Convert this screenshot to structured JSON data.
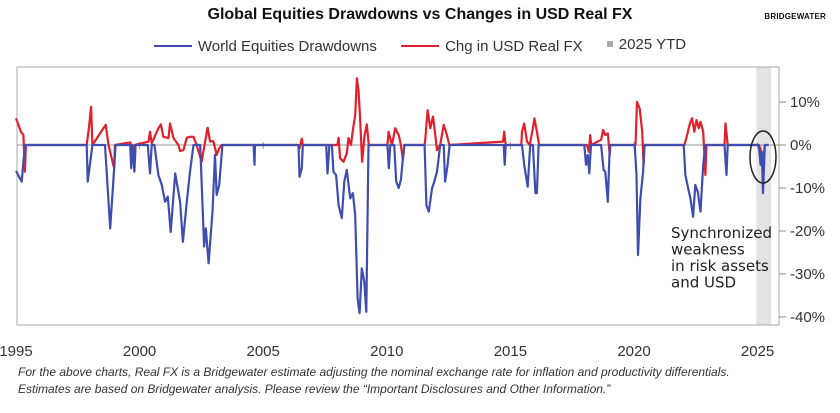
{
  "header": {
    "title": "Global Equities Drawdowns vs Changes in USD Real FX",
    "logo": "BRIDGEWATER"
  },
  "colors": {
    "drawdowns": "#3f4db0",
    "fx": "#e2202b",
    "ytd_band": "#e3e3e3"
  },
  "footnote": {
    "line1": "For the above charts, Real FX is a Bridgewater estimate adjusting the nominal exchange rate for inflation and productivity differentials.",
    "line2": "Estimates are based on Bridgewater analysis. Please review the “Important Disclosures and Other Information.”"
  },
  "chart_data": {
    "type": "line",
    "title": "Global Equities Drawdowns vs Changes in USD Real FX",
    "legend": [
      "World Equities Drawdowns",
      "Chg in USD Real FX",
      "2025 YTD"
    ],
    "legend_placement": "top",
    "xlim": [
      1995,
      2025.9
    ],
    "ylim": [
      -41.5,
      18
    ],
    "x_ticks": [
      "1995",
      "2000",
      "2005",
      "2010",
      "2015",
      "2020",
      "2025"
    ],
    "y_ticks": [
      "10%",
      "0%",
      "-10%",
      "-20%",
      "-30%",
      "-40%"
    ],
    "y_axis_side": "right",
    "grid": false,
    "ytd_band": [
      2024.95,
      2025.55
    ],
    "annotation": [
      "Synchronized",
      "weakness",
      "in risk assets",
      "and USD"
    ],
    "series": [
      {
        "name": "World Equities Drawdowns",
        "points": [
          [
            1995.0,
            -6
          ],
          [
            1995.09,
            -7
          ],
          [
            1995.23,
            -8.5
          ],
          [
            1995.36,
            0
          ],
          [
            1997.86,
            0
          ],
          [
            1997.9,
            -8.5
          ],
          [
            1997.99,
            -4.6
          ],
          [
            1998.09,
            0
          ],
          [
            1998.6,
            0
          ],
          [
            1998.81,
            -19.4
          ],
          [
            1998.98,
            -4.6
          ],
          [
            1999.03,
            0
          ],
          [
            1999.62,
            0
          ],
          [
            1999.66,
            -5.4
          ],
          [
            1999.71,
            0
          ],
          [
            1999.79,
            -6.2
          ],
          [
            1999.84,
            0
          ],
          [
            2000.33,
            0
          ],
          [
            2000.42,
            -6.6
          ],
          [
            2000.49,
            0
          ],
          [
            2000.6,
            0
          ],
          [
            2000.76,
            -7
          ],
          [
            2000.9,
            -9.3
          ],
          [
            2001.03,
            -13.2
          ],
          [
            2001.14,
            -12
          ],
          [
            2001.26,
            -20.2
          ],
          [
            2001.44,
            -6.6
          ],
          [
            2001.57,
            -10.9
          ],
          [
            2001.64,
            -13.2
          ],
          [
            2001.75,
            -22.5
          ],
          [
            2001.91,
            -13.2
          ],
          [
            2002.04,
            -6.2
          ],
          [
            2002.18,
            0
          ],
          [
            2002.45,
            0
          ],
          [
            2002.61,
            -23.6
          ],
          [
            2002.68,
            -19.4
          ],
          [
            2002.79,
            -27.5
          ],
          [
            2002.95,
            -15.5
          ],
          [
            2003.05,
            -2.3
          ],
          [
            2003.12,
            -11.6
          ],
          [
            2003.22,
            -9.3
          ],
          [
            2003.35,
            0
          ],
          [
            2004.61,
            0
          ],
          [
            2004.65,
            -4.6
          ],
          [
            2004.67,
            0
          ],
          [
            2006.43,
            0
          ],
          [
            2006.47,
            -7.4
          ],
          [
            2006.56,
            -5.4
          ],
          [
            2006.6,
            0
          ],
          [
            2007.55,
            0
          ],
          [
            2007.6,
            -6.6
          ],
          [
            2007.68,
            0
          ],
          [
            2007.78,
            0
          ],
          [
            2007.84,
            -6.2
          ],
          [
            2007.95,
            -7
          ],
          [
            2008.05,
            -14
          ],
          [
            2008.18,
            -17
          ],
          [
            2008.28,
            -8.5
          ],
          [
            2008.38,
            -5.8
          ],
          [
            2008.52,
            -12.4
          ],
          [
            2008.63,
            -11.2
          ],
          [
            2008.72,
            -16.3
          ],
          [
            2008.82,
            -35.7
          ],
          [
            2008.9,
            -39.1
          ],
          [
            2008.99,
            -28.7
          ],
          [
            2009.09,
            -31.8
          ],
          [
            2009.17,
            -38.8
          ],
          [
            2009.26,
            0
          ],
          [
            2010.03,
            0
          ],
          [
            2010.08,
            -5.4
          ],
          [
            2010.14,
            0
          ],
          [
            2010.3,
            0
          ],
          [
            2010.38,
            -8.5
          ],
          [
            2010.48,
            -10
          ],
          [
            2010.57,
            -8.1
          ],
          [
            2010.65,
            -3.1
          ],
          [
            2010.71,
            0
          ],
          [
            2011.53,
            0
          ],
          [
            2011.6,
            -14
          ],
          [
            2011.7,
            -15.5
          ],
          [
            2011.83,
            -10.1
          ],
          [
            2011.92,
            -8.5
          ],
          [
            2012.03,
            -6.2
          ],
          [
            2012.16,
            0
          ],
          [
            2012.3,
            0
          ],
          [
            2012.36,
            -8.5
          ],
          [
            2012.46,
            -4.6
          ],
          [
            2012.54,
            0
          ],
          [
            2014.73,
            0
          ],
          [
            2014.77,
            -4.6
          ],
          [
            2014.81,
            0
          ],
          [
            2015.47,
            0
          ],
          [
            2015.56,
            -4.6
          ],
          [
            2015.7,
            -9.7
          ],
          [
            2015.8,
            0
          ],
          [
            2015.91,
            0
          ],
          [
            2016.01,
            -11.2
          ],
          [
            2016.07,
            -11.2
          ],
          [
            2016.14,
            0
          ],
          [
            2017.99,
            0
          ],
          [
            2018.06,
            -4.6
          ],
          [
            2018.13,
            -2.3
          ],
          [
            2018.19,
            -6.6
          ],
          [
            2018.26,
            0
          ],
          [
            2018.67,
            0
          ],
          [
            2018.77,
            -5.8
          ],
          [
            2018.84,
            -6.2
          ],
          [
            2018.94,
            -13.2
          ],
          [
            2019.02,
            0
          ],
          [
            2020.03,
            0
          ],
          [
            2020.1,
            -7
          ],
          [
            2020.16,
            -25.6
          ],
          [
            2020.26,
            -12.4
          ],
          [
            2020.37,
            -6.2
          ],
          [
            2020.42,
            0
          ],
          [
            2022.01,
            0
          ],
          [
            2022.08,
            -7
          ],
          [
            2022.22,
            -10.9
          ],
          [
            2022.28,
            -12.4
          ],
          [
            2022.39,
            -16.7
          ],
          [
            2022.48,
            -9.3
          ],
          [
            2022.58,
            -10.9
          ],
          [
            2022.69,
            -15.5
          ],
          [
            2022.8,
            -4.6
          ],
          [
            2022.89,
            0
          ],
          [
            2023.66,
            0
          ],
          [
            2023.74,
            -7
          ],
          [
            2023.79,
            0
          ],
          [
            2025.05,
            0
          ],
          [
            2025.12,
            -4.6
          ],
          [
            2025.17,
            -1.6
          ],
          [
            2025.22,
            -11.2
          ],
          [
            2025.29,
            0
          ],
          [
            2025.45,
            0
          ]
        ]
      },
      {
        "name": "Chg in USD Real FX",
        "points": [
          [
            1995.0,
            6.2
          ],
          [
            1995.2,
            3.1
          ],
          [
            1995.3,
            2.3
          ],
          [
            1995.36,
            -6.2
          ],
          [
            1995.4,
            0
          ],
          [
            1997.86,
            0
          ],
          [
            1997.95,
            3.9
          ],
          [
            1998.04,
            8.9
          ],
          [
            1998.09,
            0
          ],
          [
            1998.63,
            4.7
          ],
          [
            1998.74,
            0
          ],
          [
            1998.87,
            -3.1
          ],
          [
            1998.97,
            -5.4
          ],
          [
            1999.0,
            0
          ],
          [
            1999.62,
            0.6
          ],
          [
            1999.75,
            -1.9
          ],
          [
            1999.8,
            0
          ],
          [
            2000.36,
            0.8
          ],
          [
            2000.42,
            3.1
          ],
          [
            2000.49,
            0.4
          ],
          [
            2000.76,
            3.9
          ],
          [
            2000.86,
            4.8
          ],
          [
            2000.96,
            1.9
          ],
          [
            2001.17,
            1.6
          ],
          [
            2001.23,
            5
          ],
          [
            2001.37,
            1.6
          ],
          [
            2001.57,
            0
          ],
          [
            2001.64,
            -1.4
          ],
          [
            2001.77,
            -1.2
          ],
          [
            2001.91,
            1.7
          ],
          [
            2002.04,
            1.9
          ],
          [
            2002.18,
            1.9
          ],
          [
            2002.31,
            0
          ],
          [
            2002.51,
            -3.9
          ],
          [
            2002.65,
            0.8
          ],
          [
            2002.75,
            4
          ],
          [
            2002.85,
            0.8
          ],
          [
            2002.98,
            0.9
          ],
          [
            2003.12,
            -2.3
          ],
          [
            2003.22,
            -0.8
          ],
          [
            2003.32,
            0
          ],
          [
            2006.43,
            0
          ],
          [
            2006.47,
            -0.8
          ],
          [
            2006.56,
            1.5
          ],
          [
            2006.6,
            0
          ],
          [
            2008.0,
            0
          ],
          [
            2008.05,
            1.7
          ],
          [
            2008.11,
            -3.1
          ],
          [
            2008.25,
            -3.9
          ],
          [
            2008.38,
            -1.9
          ],
          [
            2008.45,
            1.6
          ],
          [
            2008.55,
            0
          ],
          [
            2008.63,
            3.5
          ],
          [
            2008.72,
            7
          ],
          [
            2008.79,
            15.5
          ],
          [
            2008.86,
            12.4
          ],
          [
            2008.92,
            6.2
          ],
          [
            2009.0,
            -3.9
          ],
          [
            2009.1,
            2.3
          ],
          [
            2009.19,
            4.8
          ],
          [
            2009.27,
            0
          ],
          [
            2010.03,
            0
          ],
          [
            2010.07,
            3.1
          ],
          [
            2010.21,
            0
          ],
          [
            2010.34,
            3.9
          ],
          [
            2010.48,
            2.3
          ],
          [
            2010.57,
            0
          ],
          [
            2010.65,
            -3.5
          ],
          [
            2010.71,
            0
          ],
          [
            2011.53,
            0
          ],
          [
            2011.56,
            1.6
          ],
          [
            2011.65,
            8.1
          ],
          [
            2011.76,
            3.9
          ],
          [
            2011.87,
            6.6
          ],
          [
            2011.96,
            2.3
          ],
          [
            2012.03,
            -1.2
          ],
          [
            2012.16,
            0
          ],
          [
            2012.3,
            4.7
          ],
          [
            2012.43,
            2.3
          ],
          [
            2012.53,
            0
          ],
          [
            2014.7,
            0.8
          ],
          [
            2014.75,
            3.1
          ],
          [
            2014.81,
            0
          ],
          [
            2015.44,
            0
          ],
          [
            2015.47,
            3.1
          ],
          [
            2015.56,
            5
          ],
          [
            2015.67,
            0.8
          ],
          [
            2015.78,
            0
          ],
          [
            2015.91,
            3.9
          ],
          [
            2015.97,
            6.2
          ],
          [
            2016.07,
            3.1
          ],
          [
            2016.16,
            0
          ],
          [
            2018.1,
            0
          ],
          [
            2018.17,
            -1.6
          ],
          [
            2018.23,
            2.3
          ],
          [
            2018.27,
            0
          ],
          [
            2018.67,
            1.2
          ],
          [
            2018.75,
            3.5
          ],
          [
            2018.84,
            2.3
          ],
          [
            2018.94,
            2.7
          ],
          [
            2019.02,
            -2.3
          ],
          [
            2019.04,
            0
          ],
          [
            2020.06,
            0
          ],
          [
            2020.12,
            10
          ],
          [
            2020.23,
            8.5
          ],
          [
            2020.33,
            3.1
          ],
          [
            2020.39,
            -4.6
          ],
          [
            2020.43,
            0
          ],
          [
            2022.04,
            0
          ],
          [
            2022.15,
            2.3
          ],
          [
            2022.26,
            5
          ],
          [
            2022.35,
            6.2
          ],
          [
            2022.44,
            3.1
          ],
          [
            2022.53,
            5.8
          ],
          [
            2022.62,
            3.9
          ],
          [
            2022.69,
            5.4
          ],
          [
            2022.8,
            3.1
          ],
          [
            2022.89,
            -7
          ],
          [
            2022.93,
            0
          ],
          [
            2023.66,
            0
          ],
          [
            2023.7,
            5
          ],
          [
            2023.79,
            0
          ],
          [
            2025.05,
            0
          ],
          [
            2025.12,
            -1
          ],
          [
            2025.22,
            -4.6
          ],
          [
            2025.29,
            0
          ]
        ]
      }
    ]
  }
}
